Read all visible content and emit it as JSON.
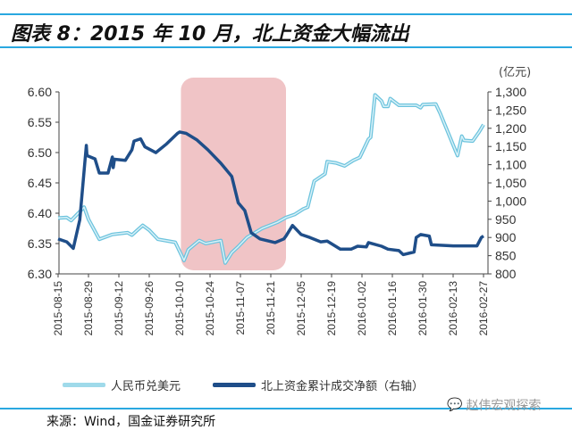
{
  "title": "图表 8：2015 年 10 月，北上资金大幅流出",
  "source": "来源：Wind，国金证券研究所",
  "watermark": "赵伟宏观探索",
  "chart_data": {
    "type": "line",
    "title": "图表 8：2015 年 10 月，北上资金大幅流出",
    "x_origin": "2015-08-15",
    "x_unit": "days since x_origin",
    "xlim": [
      0,
      196
    ],
    "x_tick_labels": [
      "2015-08-15",
      "2015-08-29",
      "2015-09-12",
      "2015-09-26",
      "2015-10-10",
      "2015-10-24",
      "2015-11-07",
      "2015-11-21",
      "2015-12-05",
      "2015-12-19",
      "2016-01-02",
      "2016-01-16",
      "2016-01-30",
      "2016-02-13",
      "2016-02-27"
    ],
    "y_left": {
      "lim": [
        6.3,
        6.6
      ],
      "ticks": [
        "6.30",
        "6.35",
        "6.40",
        "6.45",
        "6.50",
        "6.55",
        "6.60"
      ]
    },
    "y_right": {
      "lim": [
        800,
        1300
      ],
      "unit": "(亿元)",
      "ticks": [
        "800",
        "850",
        "900",
        "950",
        "1,000",
        "1,050",
        "1,100",
        "1,150",
        "1,200",
        "1,250",
        "1,300"
      ]
    },
    "highlight": {
      "from_day": 57,
      "to_day": 105,
      "color": "#f0c4c6"
    },
    "legend_position": "bottom",
    "grid": false,
    "series": [
      {
        "name": "人民币兑美元",
        "axis": "left",
        "color": "#8fd3e8",
        "points": [
          [
            0,
            6.392
          ],
          [
            4,
            6.393
          ],
          [
            6,
            6.388
          ],
          [
            12,
            6.41
          ],
          [
            14,
            6.39
          ],
          [
            19,
            6.357
          ],
          [
            25,
            6.365
          ],
          [
            32,
            6.368
          ],
          [
            34,
            6.364
          ],
          [
            39,
            6.38
          ],
          [
            42,
            6.372
          ],
          [
            46,
            6.357
          ],
          [
            54,
            6.352
          ],
          [
            58,
            6.322
          ],
          [
            60,
            6.34
          ],
          [
            65,
            6.355
          ],
          [
            68,
            6.35
          ],
          [
            75,
            6.355
          ],
          [
            77,
            6.318
          ],
          [
            80,
            6.335
          ],
          [
            83,
            6.345
          ],
          [
            87,
            6.36
          ],
          [
            94,
            6.375
          ],
          [
            101,
            6.385
          ],
          [
            105,
            6.393
          ],
          [
            109,
            6.398
          ],
          [
            113,
            6.407
          ],
          [
            115,
            6.41
          ],
          [
            118,
            6.453
          ],
          [
            123,
            6.465
          ],
          [
            124,
            6.485
          ],
          [
            128,
            6.483
          ],
          [
            132,
            6.478
          ],
          [
            136,
            6.487
          ],
          [
            139,
            6.492
          ],
          [
            143,
            6.522
          ],
          [
            144,
            6.525
          ],
          [
            146,
            6.595
          ],
          [
            149,
            6.585
          ],
          [
            150,
            6.576
          ],
          [
            152,
            6.576
          ],
          [
            153,
            6.589
          ],
          [
            157,
            6.578
          ],
          [
            165,
            6.578
          ],
          [
            167,
            6.574
          ],
          [
            168,
            6.579
          ],
          [
            174,
            6.58
          ],
          [
            176,
            6.565
          ],
          [
            184,
            6.495
          ],
          [
            186,
            6.527
          ],
          [
            187,
            6.52
          ],
          [
            191,
            6.519
          ],
          [
            194,
            6.534
          ],
          [
            196,
            6.546
          ]
        ]
      },
      {
        "name": "北上资金累计成交净额（右轴）",
        "axis": "right",
        "color": "#1f4e89",
        "points": [
          [
            0,
            896
          ],
          [
            4,
            888
          ],
          [
            7,
            870
          ],
          [
            10,
            949
          ],
          [
            13,
            1153
          ],
          [
            13.3,
            1125
          ],
          [
            17,
            1116
          ],
          [
            19,
            1077
          ],
          [
            23,
            1077
          ],
          [
            25,
            1121
          ],
          [
            25.4,
            1092
          ],
          [
            26,
            1115
          ],
          [
            31,
            1112
          ],
          [
            34,
            1141
          ],
          [
            35,
            1165
          ],
          [
            38,
            1171
          ],
          [
            40,
            1149
          ],
          [
            45,
            1133
          ],
          [
            50,
            1157
          ],
          [
            55,
            1186
          ],
          [
            56,
            1190
          ],
          [
            59,
            1186
          ],
          [
            64,
            1168
          ],
          [
            69,
            1141
          ],
          [
            75,
            1104
          ],
          [
            80,
            1068
          ],
          [
            83,
            995
          ],
          [
            86,
            974
          ],
          [
            89,
            913
          ],
          [
            93,
            896
          ],
          [
            100,
            886
          ],
          [
            104,
            896
          ],
          [
            105,
            904
          ],
          [
            108,
            933
          ],
          [
            112,
            908
          ],
          [
            116,
            900
          ],
          [
            121,
            888
          ],
          [
            124,
            890
          ],
          [
            130,
            868
          ],
          [
            135,
            868
          ],
          [
            138,
            876
          ],
          [
            142,
            874
          ],
          [
            143,
            886
          ],
          [
            149,
            876
          ],
          [
            152,
            868
          ],
          [
            157,
            864
          ],
          [
            159,
            853
          ],
          [
            164,
            860
          ],
          [
            165,
            900
          ],
          [
            167,
            908
          ],
          [
            171,
            904
          ],
          [
            172,
            880
          ],
          [
            182,
            877
          ],
          [
            193,
            877
          ],
          [
            195,
            900
          ],
          [
            196,
            904
          ]
        ]
      }
    ]
  }
}
